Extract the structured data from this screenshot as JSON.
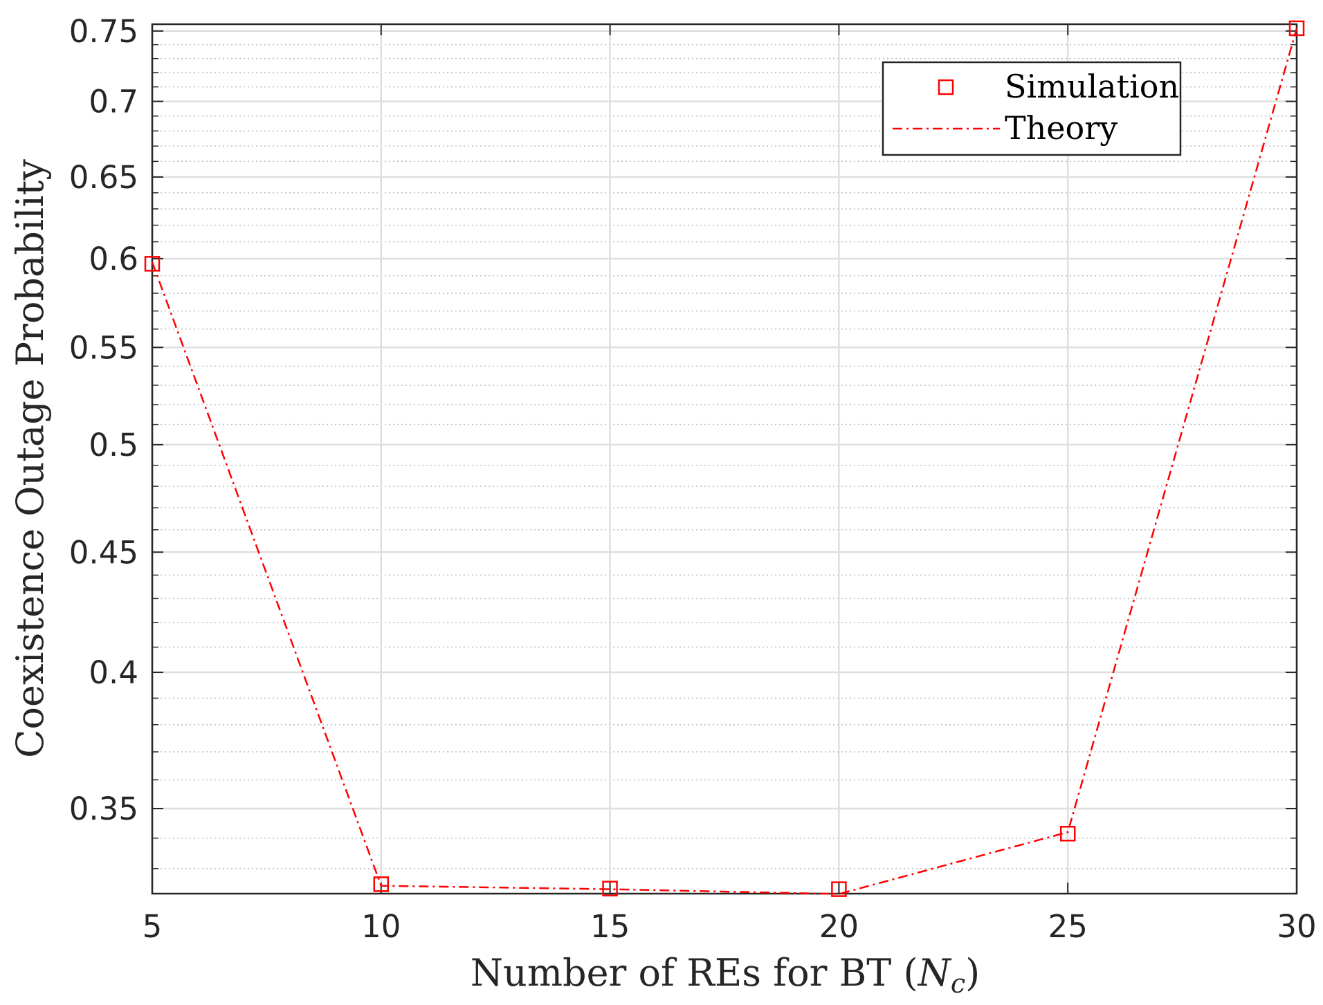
{
  "chart_data": {
    "type": "line",
    "xlabel": "Number of REs for BT (",
    "xlabel_symbol": "N",
    "xlabel_subscript": "c",
    "xlabel_close": ")",
    "ylabel": "Coexistence Outage Probability",
    "xlim": [
      5,
      30
    ],
    "ylim": [
      0.322,
      0.755
    ],
    "yscale": "log",
    "x_ticks": [
      "5",
      "10",
      "15",
      "20",
      "25",
      "30"
    ],
    "y_ticks": [
      "0.35",
      "0.4",
      "0.45",
      "0.5",
      "0.55",
      "0.6",
      "0.65",
      "0.7",
      "0.75"
    ],
    "grid": true,
    "legend_position": "top-right",
    "series": [
      {
        "name": "Simulation",
        "style": "markers",
        "marker": "square",
        "color": "#ff0000",
        "x": [
          5,
          10,
          15,
          20,
          25,
          30
        ],
        "y": [
          0.597,
          0.325,
          0.3236,
          0.3234,
          0.3415,
          0.752
        ]
      },
      {
        "name": "Theory",
        "style": "dash-dot",
        "color": "#ff0000",
        "x": [
          5,
          10,
          15,
          20,
          25,
          30
        ],
        "y": [
          0.598,
          0.3245,
          0.3234,
          0.3219,
          0.342,
          0.752
        ]
      }
    ]
  }
}
